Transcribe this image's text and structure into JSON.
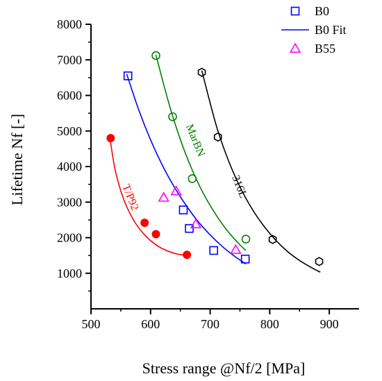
{
  "chart_data": {
    "type": "scatter",
    "xlabel": "Stress range @Nf/2 [MPa]",
    "ylabel": "Lifetime Nf [-]",
    "xlim": [
      500,
      950
    ],
    "ylim": [
      0,
      8000
    ],
    "xticks": [
      500,
      600,
      700,
      800,
      900
    ],
    "yticks": [
      1000,
      2000,
      3000,
      4000,
      5000,
      6000,
      7000,
      8000
    ],
    "grid": false,
    "legend_position": "top-right",
    "legend": [
      {
        "label": "B0",
        "marker": "square",
        "color": "#0000ff"
      },
      {
        "label": "B0 Fit",
        "marker": "line",
        "color": "#0000ff"
      },
      {
        "label": "B55",
        "marker": "triangle",
        "color": "#ff00ff"
      }
    ],
    "series": [
      {
        "label": "B0",
        "marker": "square",
        "color": "#0000ff",
        "points": [
          [
            562,
            6550
          ],
          [
            655,
            2780
          ],
          [
            665,
            2260
          ],
          [
            706,
            1640
          ],
          [
            759,
            1400
          ]
        ],
        "fit": [
          [
            560,
            6600
          ],
          [
            580,
            5600
          ],
          [
            600,
            4750
          ],
          [
            620,
            4030
          ],
          [
            640,
            3420
          ],
          [
            660,
            2900
          ],
          [
            680,
            2450
          ],
          [
            700,
            2080
          ],
          [
            720,
            1760
          ],
          [
            740,
            1490
          ],
          [
            760,
            1260
          ]
        ]
      },
      {
        "label": "B55",
        "marker": "triangle",
        "color": "#ff00ff",
        "points": [
          [
            622,
            3130
          ],
          [
            643,
            3310
          ],
          [
            676,
            2380
          ],
          [
            743,
            1660
          ]
        ]
      },
      {
        "label": "MarBN",
        "marker": "circle",
        "color": "#008000",
        "annotation": "MarBN",
        "annotation_at": [
          670,
          4700
        ],
        "points": [
          [
            609,
            7120
          ],
          [
            637,
            5400
          ],
          [
            670,
            3660
          ],
          [
            760,
            1960
          ]
        ],
        "fit": [
          [
            609,
            7140
          ],
          [
            630,
            5820
          ],
          [
            650,
            4760
          ],
          [
            670,
            3900
          ],
          [
            690,
            3200
          ],
          [
            710,
            2640
          ],
          [
            730,
            2170
          ],
          [
            750,
            1800
          ],
          [
            760,
            1640
          ]
        ]
      },
      {
        "label": "316L",
        "marker": "hexagon",
        "color": "#000000",
        "annotation": "316L",
        "annotation_at": [
          744,
          3400
        ],
        "points": [
          [
            686,
            6650
          ],
          [
            713,
            4830
          ],
          [
            805,
            1950
          ],
          [
            883,
            1330
          ]
        ],
        "fit": [
          [
            686,
            6700
          ],
          [
            710,
            5170
          ],
          [
            730,
            4200
          ],
          [
            750,
            3430
          ],
          [
            770,
            2820
          ],
          [
            790,
            2330
          ],
          [
            810,
            1930
          ],
          [
            830,
            1610
          ],
          [
            850,
            1360
          ],
          [
            870,
            1160
          ],
          [
            885,
            1030
          ]
        ]
      },
      {
        "label": "T/P92",
        "marker": "filled-circle",
        "color": "#ff0000",
        "annotation": "T/P92",
        "annotation_at": [
          561,
          3100
        ],
        "points": [
          [
            533,
            4800
          ],
          [
            590,
            2420
          ],
          [
            609,
            2100
          ],
          [
            661,
            1520
          ]
        ],
        "fit": [
          [
            532,
            4780
          ],
          [
            540,
            3950
          ],
          [
            550,
            3320
          ],
          [
            560,
            2870
          ],
          [
            575,
            2400
          ],
          [
            590,
            2080
          ],
          [
            605,
            1850
          ],
          [
            620,
            1690
          ],
          [
            640,
            1560
          ],
          [
            660,
            1500
          ]
        ]
      }
    ]
  }
}
